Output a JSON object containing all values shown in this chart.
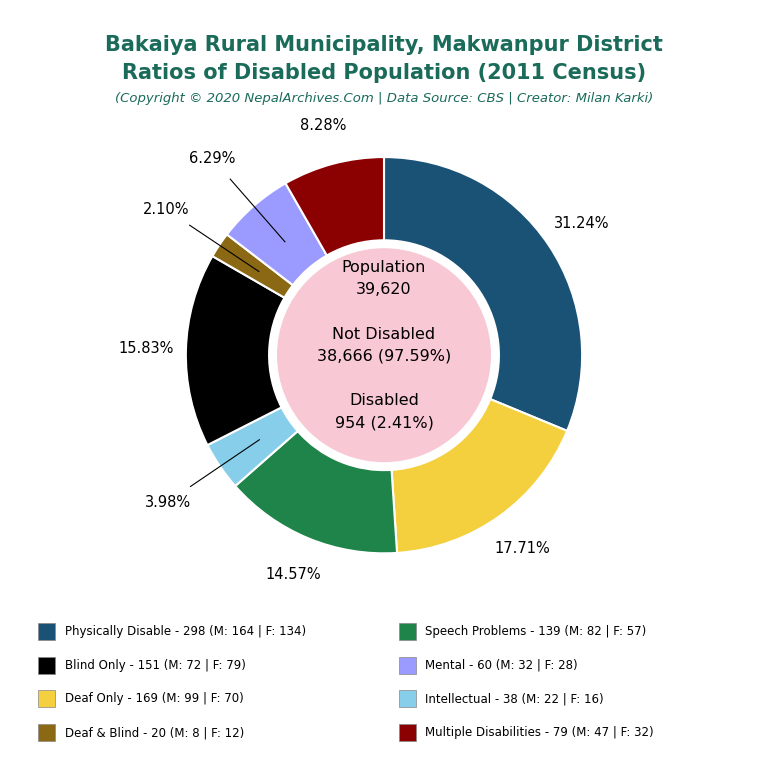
{
  "title_line1": "Bakaiya Rural Municipality, Makwanpur District",
  "title_line2": "Ratios of Disabled Population (2011 Census)",
  "subtitle": "(Copyright © 2020 NepalArchives.Com | Data Source: CBS | Creator: Milan Karki)",
  "title_color": "#1a6b5a",
  "subtitle_color": "#1a6b5a",
  "center_circle_color": "#f8c8d4",
  "categories": [
    "Physically Disable - 298 (M: 164 | F: 134)",
    "Deaf Only - 169 (M: 99 | F: 70)",
    "Speech Problems - 139 (M: 82 | F: 57)",
    "Intellectual - 38 (M: 22 | F: 16)",
    "Blind Only - 151 (M: 72 | F: 79)",
    "Deaf & Blind - 20 (M: 8 | F: 12)",
    "Mental - 60 (M: 32 | F: 28)",
    "Multiple Disabilities - 79 (M: 47 | F: 32)"
  ],
  "legend_categories": [
    "Physically Disable - 298 (M: 164 | F: 134)",
    "Blind Only - 151 (M: 72 | F: 79)",
    "Deaf Only - 169 (M: 99 | F: 70)",
    "Deaf & Blind - 20 (M: 8 | F: 12)",
    "Speech Problems - 139 (M: 82 | F: 57)",
    "Mental - 60 (M: 32 | F: 28)",
    "Intellectual - 38 (M: 22 | F: 16)",
    "Multiple Disabilities - 79 (M: 47 | F: 32)"
  ],
  "values": [
    298,
    169,
    139,
    38,
    151,
    20,
    60,
    79
  ],
  "percentages": [
    "31.24%",
    "17.71%",
    "14.57%",
    "3.98%",
    "15.83%",
    "2.10%",
    "6.29%",
    "8.28%"
  ],
  "colors": [
    "#1a5276",
    "#f4d03f",
    "#1e8449",
    "#87ceeb",
    "#000000",
    "#8b6914",
    "#9b9bff",
    "#8b0000"
  ],
  "legend_colors": [
    "#1a5276",
    "#000000",
    "#f4d03f",
    "#8b6914",
    "#1e8449",
    "#9b9bff",
    "#87ceeb",
    "#8b0000"
  ],
  "background_color": "#ffffff"
}
